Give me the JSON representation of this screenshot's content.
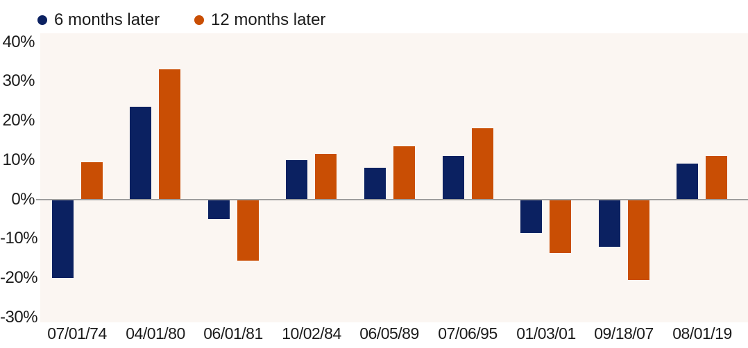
{
  "legend": [
    {
      "label": "6 months later",
      "color": "#0b2161"
    },
    {
      "label": "12 months later",
      "color": "#c94e04"
    }
  ],
  "colors": {
    "series_6m": "#0b2161",
    "series_12m": "#c94e04",
    "plot_background": "#fbf6f2",
    "page_background": "#ffffff",
    "zero_line": "#9e9e9e",
    "text": "#1b1b1b"
  },
  "chart_data": {
    "type": "bar",
    "title": "",
    "xlabel": "",
    "ylabel": "",
    "categories": [
      "07/01/74",
      "04/01/80",
      "06/01/81",
      "10/02/84",
      "06/05/89",
      "07/06/95",
      "01/03/01",
      "09/18/07",
      "08/01/19"
    ],
    "series": [
      {
        "name": "6 months later",
        "color": "#0b2161",
        "values": [
          -20,
          23.5,
          -5,
          10,
          8,
          11,
          -8.5,
          -12,
          9
        ]
      },
      {
        "name": "12 months later",
        "color": "#c94e04",
        "values": [
          9.5,
          33,
          -15.5,
          11.5,
          13.5,
          18,
          -13.5,
          -20.5,
          11
        ]
      }
    ],
    "y_ticks": [
      40,
      30,
      20,
      10,
      0,
      -10,
      -20,
      -30
    ],
    "y_tick_suffix": "%",
    "ylim": [
      -30,
      42
    ],
    "grid": false,
    "zero_line": true,
    "legend_position": "top-left"
  }
}
